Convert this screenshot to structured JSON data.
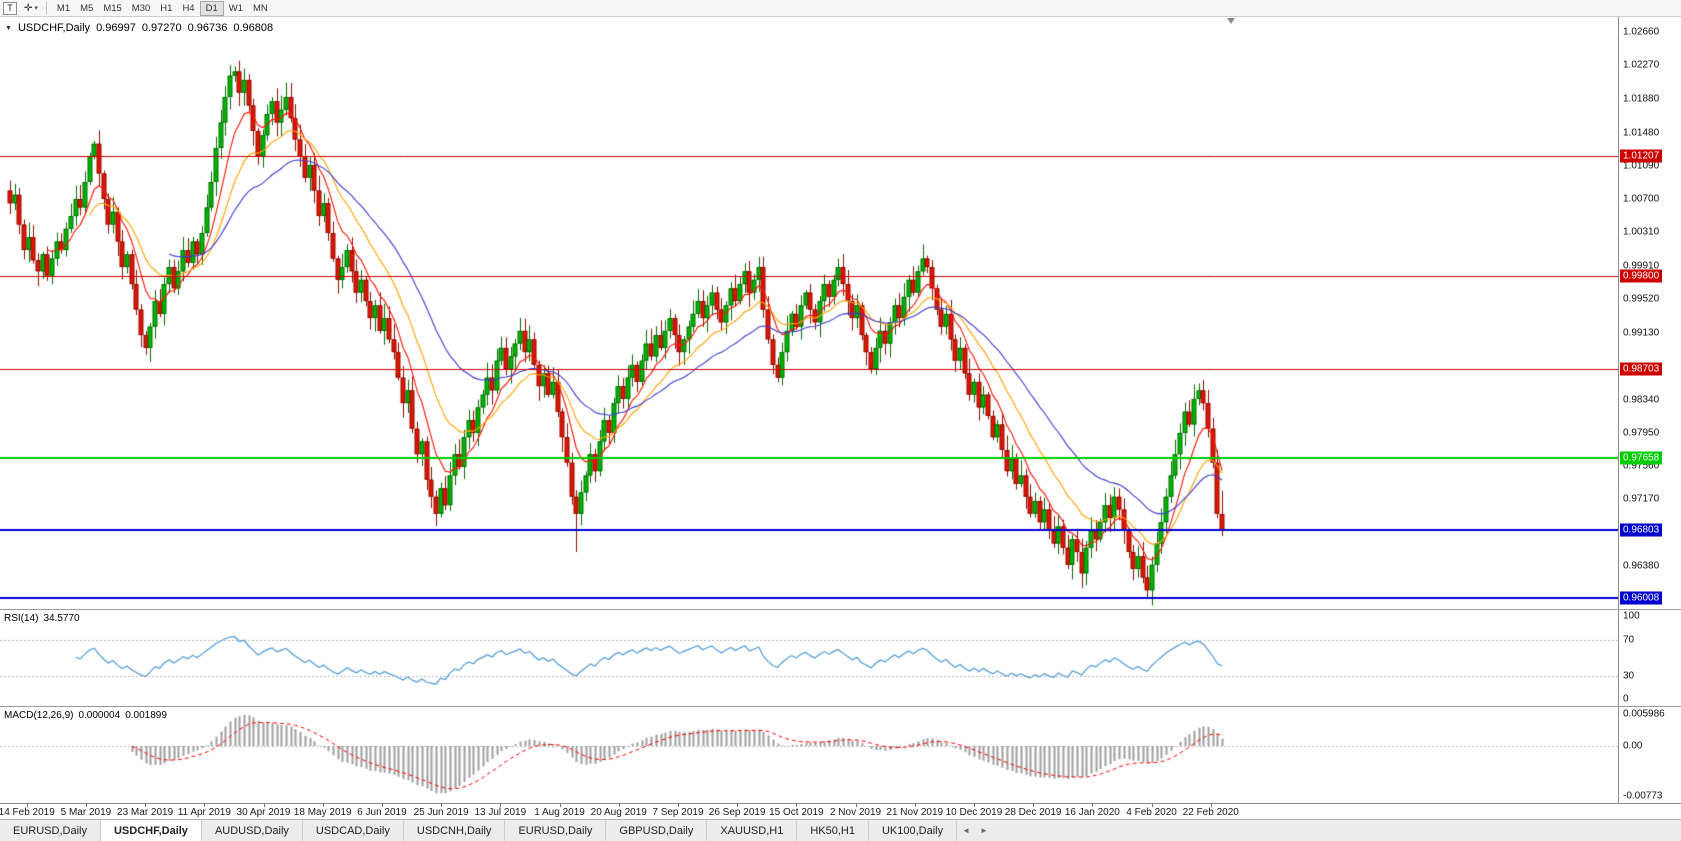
{
  "toolbar": {
    "text_tool_label": "T",
    "cursor_icon": "✛",
    "dropdown_icon": "▾",
    "timeframes": [
      "M1",
      "M5",
      "M15",
      "M30",
      "H1",
      "H4",
      "D1",
      "W1",
      "MN"
    ],
    "active_timeframe": "D1"
  },
  "chart_header": {
    "collapse_icon": "▼",
    "title": "USDCHF,Daily",
    "open": "0.96997",
    "high": "0.97270",
    "low": "0.96736",
    "close": "0.96808"
  },
  "indicators": {
    "rsi": {
      "label": "RSI(14)",
      "value": "34.5770",
      "axis_labels": [
        "100",
        "70",
        "30",
        "0"
      ],
      "guide_levels": [
        70,
        30
      ],
      "line_color": "#4f9ad6"
    },
    "macd": {
      "label": "MACD(12,26,9)",
      "value_main": "0.000004",
      "value_signal": "0.001899",
      "axis_top": "0.005986",
      "axis_zero": "0.00",
      "axis_bottom": "-0.00773",
      "histogram_color": "#9e9e9e",
      "signal_color": "#ff0000"
    }
  },
  "price_axis": {
    "ticks": [
      "1.02660",
      "1.02270",
      "1.01880",
      "1.01480",
      "1.01090",
      "1.00700",
      "1.00310",
      "0.99910",
      "0.99520",
      "0.99130",
      "0.98730",
      "0.98340",
      "0.97950",
      "0.97560",
      "0.97170",
      "0.96780",
      "0.96380",
      "0.95990"
    ]
  },
  "levels": [
    {
      "label": "1.01207",
      "price": 1.01207,
      "color": "#cc0000",
      "thickness": 1
    },
    {
      "label": "0.99800",
      "price": 0.998,
      "color": "#cc0000",
      "thickness": 1
    },
    {
      "label": "0.98703",
      "price": 0.98703,
      "color": "#cc0000",
      "thickness": 1
    },
    {
      "label": "0.97658",
      "price": 0.97658,
      "color": "#00cc00",
      "thickness": 2
    },
    {
      "label": "0.96803",
      "price": 0.96803,
      "color": "#0000cc",
      "thickness": 2
    },
    {
      "label": "0.96008",
      "price": 0.96008,
      "color": "#0000cc",
      "thickness": 2
    }
  ],
  "date_axis": [
    "14 Feb 2019",
    "5 Mar 2019",
    "23 Mar 2019",
    "11 Apr 2019",
    "30 Apr 2019",
    "18 May 2019",
    "6 Jun 2019",
    "25 Jun 2019",
    "13 Jul 2019",
    "1 Aug 2019",
    "20 Aug 2019",
    "7 Sep 2019",
    "26 Sep 2019",
    "15 Oct 2019",
    "2 Nov 2019",
    "21 Nov 2019",
    "10 Dec 2019",
    "28 Dec 2019",
    "16 Jan 2020",
    "4 Feb 2020",
    "22 Feb 2020"
  ],
  "tabs": {
    "items": [
      {
        "label": "EURUSD,Daily"
      },
      {
        "label": "USDCHF,Daily"
      },
      {
        "label": "AUDUSD,Daily"
      },
      {
        "label": "USDCAD,Daily"
      },
      {
        "label": "USDCNH,Daily"
      },
      {
        "label": "EURUSD,Daily"
      },
      {
        "label": "GBPUSD,Daily"
      },
      {
        "label": "XAUUSD,H1"
      },
      {
        "label": "HK50,H1"
      },
      {
        "label": "UK100,Daily"
      }
    ],
    "active_index": 1,
    "scroll_left": "◄",
    "scroll_right": "►"
  },
  "chart_data": {
    "type": "candlestick",
    "symbol": "USDCHF",
    "timeframe": "Daily",
    "title": "USDCHF,Daily",
    "y_min": 0.9588,
    "y_max": 1.0284,
    "x_labels": [
      "14 Feb 2019",
      "5 Mar 2019",
      "23 Mar 2019",
      "11 Apr 2019",
      "30 Apr 2019",
      "18 May 2019",
      "6 Jun 2019",
      "25 Jun 2019",
      "13 Jul 2019",
      "1 Aug 2019",
      "20 Aug 2019",
      "7 Sep 2019",
      "26 Sep 2019",
      "15 Oct 2019",
      "2 Nov 2019",
      "21 Nov 2019",
      "10 Dec 2019",
      "28 Dec 2019",
      "16 Jan 2020",
      "4 Feb 2020",
      "22 Feb 2020"
    ],
    "closes": [
      1.0065,
      1.0075,
      1.004,
      1.001,
      1.0025,
      0.9998,
      0.9985,
      1.0005,
      0.998,
      1.0,
      1.002,
      1.001,
      1.0035,
      1.005,
      1.007,
      1.006,
      1.009,
      1.012,
      1.0135,
      1.01,
      1.007,
      1.004,
      1.0055,
      1.002,
      0.999,
      1.0005,
      0.997,
      0.994,
      0.991,
      0.9895,
      0.992,
      0.995,
      0.9935,
      0.997,
      0.999,
      0.9965,
      0.9985,
      1.001,
      0.9995,
      1.002,
      1.0005,
      1.003,
      1.006,
      1.009,
      1.013,
      1.016,
      1.019,
      1.0215,
      1.022,
      1.0195,
      1.021,
      1.018,
      1.015,
      1.012,
      1.0145,
      1.017,
      1.0185,
      1.016,
      1.0175,
      1.019,
      1.0165,
      1.014,
      1.012,
      1.0095,
      1.011,
      1.008,
      1.005,
      1.0065,
      1.003,
      1.0,
      0.9975,
      0.999,
      1.001,
      0.9985,
      0.996,
      0.9975,
      0.995,
      0.993,
      0.9945,
      0.9915,
      0.993,
      0.9905,
      0.989,
      0.986,
      0.983,
      0.9845,
      0.98,
      0.977,
      0.9785,
      0.974,
      0.972,
      0.97,
      0.973,
      0.971,
      0.9745,
      0.977,
      0.9755,
      0.979,
      0.981,
      0.9795,
      0.9825,
      0.984,
      0.986,
      0.9845,
      0.988,
      0.9895,
      0.987,
      0.9885,
      0.99,
      0.9915,
      0.989,
      0.9905,
      0.9875,
      0.985,
      0.9865,
      0.984,
      0.9855,
      0.982,
      0.979,
      0.976,
      0.972,
      0.97,
      0.9725,
      0.9745,
      0.977,
      0.975,
      0.9785,
      0.981,
      0.9795,
      0.983,
      0.985,
      0.9835,
      0.986,
      0.9875,
      0.9855,
      0.988,
      0.99,
      0.9885,
      0.991,
      0.9895,
      0.9915,
      0.993,
      0.991,
      0.989,
      0.9905,
      0.992,
      0.9935,
      0.995,
      0.993,
      0.9945,
      0.996,
      0.994,
      0.9925,
      0.9945,
      0.9965,
      0.995,
      0.997,
      0.9985,
      0.996,
      0.9975,
      0.999,
      0.994,
      0.9905,
      0.9875,
      0.986,
      0.989,
      0.9915,
      0.9935,
      0.992,
      0.9945,
      0.996,
      0.994,
      0.9925,
      0.995,
      0.997,
      0.9955,
      0.9975,
      0.999,
      0.997,
      0.995,
      0.993,
      0.9945,
      0.991,
      0.989,
      0.987,
      0.9895,
      0.9915,
      0.99,
      0.9925,
      0.9945,
      0.993,
      0.9955,
      0.9975,
      0.996,
      0.9985,
      1.0,
      0.999,
      0.9965,
      0.994,
      0.992,
      0.9935,
      0.9905,
      0.988,
      0.9895,
      0.9865,
      0.984,
      0.9855,
      0.9825,
      0.984,
      0.9815,
      0.979,
      0.9805,
      0.9775,
      0.975,
      0.9765,
      0.9735,
      0.9745,
      0.972,
      0.97,
      0.9715,
      0.969,
      0.9705,
      0.968,
      0.9665,
      0.9685,
      0.966,
      0.964,
      0.967,
      0.9655,
      0.963,
      0.966,
      0.968,
      0.967,
      0.969,
      0.971,
      0.9695,
      0.972,
      0.9705,
      0.968,
      0.9655,
      0.9635,
      0.965,
      0.9625,
      0.961,
      0.964,
      0.9665,
      0.969,
      0.972,
      0.9745,
      0.977,
      0.9795,
      0.982,
      0.9805,
      0.9835,
      0.9845,
      0.983,
      0.98,
      0.976,
      0.97,
      0.9681
    ],
    "last_candle": {
      "open": 0.96997,
      "high": 0.9727,
      "low": 0.96736,
      "close": 0.96808
    },
    "special_highs": [
      {
        "index": 48,
        "high": 1.0226
      }
    ],
    "special_lows": [
      {
        "index": 121,
        "low": 0.9655
      },
      {
        "index": 229,
        "low": 0.9613
      },
      {
        "index": 243,
        "low": 0.9601
      }
    ],
    "ma": [
      {
        "name": "ma-fast",
        "period": 8,
        "color": "#ff1400"
      },
      {
        "name": "ma-mid",
        "period": 17,
        "color": "#ffa200"
      },
      {
        "name": "ma-slow",
        "period": 34,
        "color": "#3c3cd2"
      }
    ],
    "colors": {
      "bull_fill": "#00b300",
      "bull_border": "#006e00",
      "bear_fill": "#e01400",
      "bear_border": "#8f0d00",
      "background": "#ffffff"
    }
  }
}
